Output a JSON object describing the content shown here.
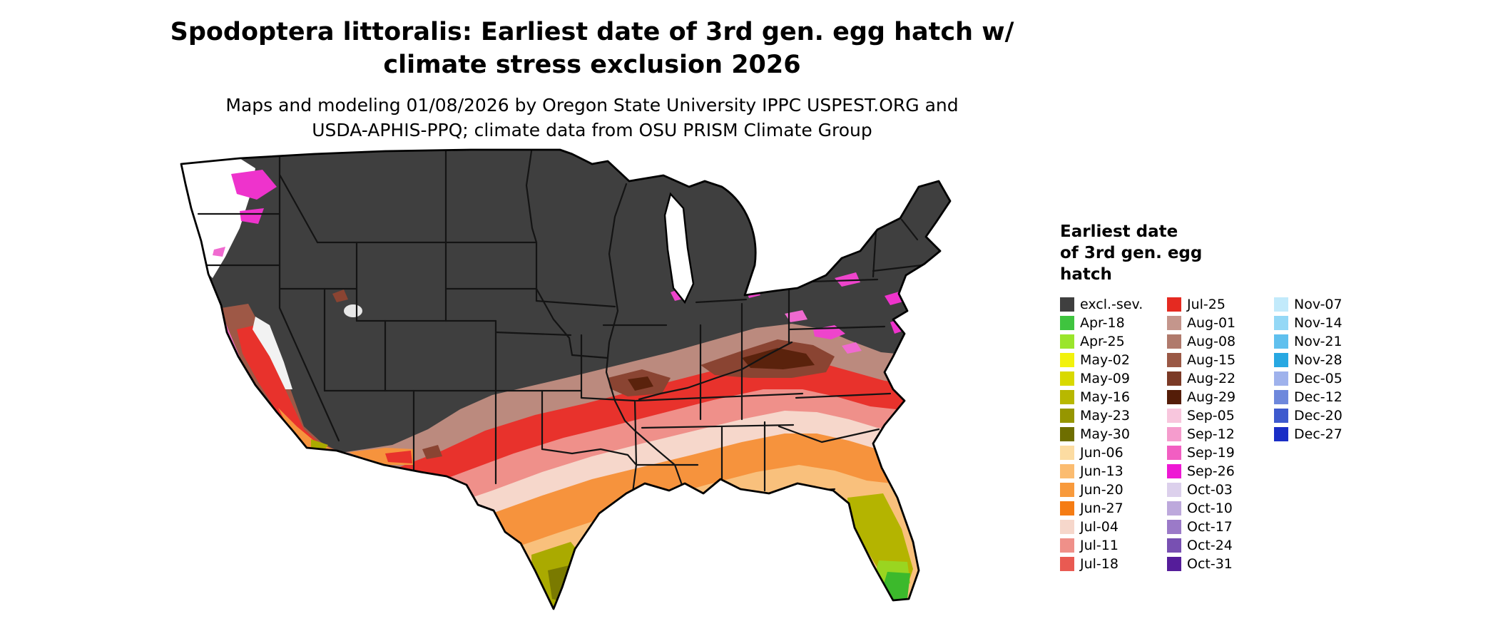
{
  "header": {
    "title_line1": "Spodoptera littoralis: Earliest date of 3rd gen. egg hatch w/",
    "title_line2": "climate stress exclusion 2026",
    "subtitle_line1": "Maps and modeling 01/08/2026 by Oregon State University IPPC USPEST.ORG and",
    "subtitle_line2": "USDA-APHIS-PPQ; climate data from OSU PRISM Climate Group"
  },
  "legend": {
    "title_lines": [
      "Earliest date",
      "of 3rd gen. egg",
      "hatch"
    ],
    "columns": [
      {
        "entries": [
          {
            "label": "excl.-sev.",
            "color": "#3f3f3f"
          },
          {
            "label": "Apr-18",
            "color": "#3fc43f"
          },
          {
            "label": "Apr-25",
            "color": "#9ae52b"
          },
          {
            "label": "May-02",
            "color": "#f2f20d"
          },
          {
            "label": "May-09",
            "color": "#d9d900"
          },
          {
            "label": "May-16",
            "color": "#b8b800"
          },
          {
            "label": "May-23",
            "color": "#969600"
          },
          {
            "label": "May-30",
            "color": "#6e6e00"
          },
          {
            "label": "Jun-06",
            "color": "#fcdca2"
          },
          {
            "label": "Jun-13",
            "color": "#fbbc70"
          },
          {
            "label": "Jun-20",
            "color": "#f89a3c"
          },
          {
            "label": "Jun-27",
            "color": "#f57c14"
          },
          {
            "label": "Jul-04",
            "color": "#f6d7cb"
          },
          {
            "label": "Jul-11",
            "color": "#ef9089"
          },
          {
            "label": "Jul-18",
            "color": "#e95a52"
          }
        ]
      },
      {
        "entries": [
          {
            "label": "Jul-25",
            "color": "#e52a21"
          },
          {
            "label": "Aug-01",
            "color": "#c4968c"
          },
          {
            "label": "Aug-08",
            "color": "#b07a6c"
          },
          {
            "label": "Aug-15",
            "color": "#9a5845"
          },
          {
            "label": "Aug-22",
            "color": "#7b3a26"
          },
          {
            "label": "Aug-29",
            "color": "#541d08"
          },
          {
            "label": "Sep-05",
            "color": "#f8c6dd"
          },
          {
            "label": "Sep-12",
            "color": "#f59ccd"
          },
          {
            "label": "Sep-19",
            "color": "#f25ec2"
          },
          {
            "label": "Sep-26",
            "color": "#ee18d4"
          },
          {
            "label": "Oct-03",
            "color": "#dcd0ec"
          },
          {
            "label": "Oct-10",
            "color": "#bda9dc"
          },
          {
            "label": "Oct-17",
            "color": "#9b7ac8"
          },
          {
            "label": "Oct-24",
            "color": "#7850b2"
          },
          {
            "label": "Oct-31",
            "color": "#551d9a"
          }
        ]
      },
      {
        "entries": [
          {
            "label": "Nov-07",
            "color": "#c2eafb"
          },
          {
            "label": "Nov-14",
            "color": "#94d8f6"
          },
          {
            "label": "Nov-21",
            "color": "#60c0ee"
          },
          {
            "label": "Nov-28",
            "color": "#28a8e2"
          },
          {
            "label": "Dec-05",
            "color": "#9fb2ec"
          },
          {
            "label": "Dec-12",
            "color": "#6e88dc"
          },
          {
            "label": "Dec-20",
            "color": "#3e5ace"
          },
          {
            "label": "Dec-27",
            "color": "#1a2ec6"
          }
        ]
      }
    ]
  }
}
